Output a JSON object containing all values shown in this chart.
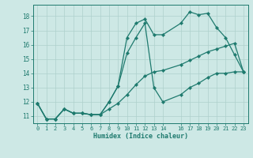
{
  "xlabel": "Humidex (Indice chaleur)",
  "background_color": "#cde8e5",
  "grid_color": "#aed0cc",
  "line_color": "#1e7a6e",
  "xlim": [
    -0.5,
    23.5
  ],
  "ylim": [
    10.5,
    18.8
  ],
  "yticks": [
    11,
    12,
    13,
    14,
    15,
    16,
    17,
    18
  ],
  "xticks": [
    0,
    1,
    2,
    3,
    4,
    5,
    6,
    7,
    8,
    9,
    10,
    11,
    12,
    13,
    14,
    16,
    17,
    18,
    19,
    20,
    21,
    22,
    23
  ],
  "series1_x": [
    0,
    1,
    2,
    3,
    4,
    5,
    6,
    7,
    8,
    9,
    10,
    11,
    12,
    13,
    14,
    16,
    17,
    18,
    19,
    20,
    21,
    22,
    23
  ],
  "series1_y": [
    11.9,
    10.8,
    10.8,
    11.5,
    11.2,
    11.2,
    11.1,
    11.1,
    12.0,
    13.1,
    16.5,
    17.5,
    17.8,
    16.7,
    16.7,
    17.5,
    18.3,
    18.1,
    18.2,
    17.2,
    16.5,
    15.3,
    14.1
  ],
  "series2_x": [
    0,
    1,
    2,
    3,
    4,
    5,
    6,
    7,
    8,
    9,
    10,
    11,
    12,
    13,
    14,
    16,
    17,
    18,
    19,
    20,
    21,
    22,
    23
  ],
  "series2_y": [
    11.9,
    10.8,
    10.8,
    11.5,
    11.2,
    11.2,
    11.1,
    11.1,
    11.5,
    11.9,
    12.5,
    13.2,
    13.8,
    14.1,
    14.2,
    14.6,
    14.9,
    15.2,
    15.5,
    15.7,
    15.9,
    16.1,
    14.1
  ],
  "series3_x": [
    0,
    1,
    2,
    3,
    4,
    5,
    6,
    7,
    8,
    9,
    10,
    11,
    12,
    13,
    14,
    16,
    17,
    18,
    19,
    20,
    21,
    22,
    23
  ],
  "series3_y": [
    11.9,
    10.8,
    10.8,
    11.5,
    11.2,
    11.2,
    11.1,
    11.1,
    12.0,
    13.1,
    15.4,
    16.5,
    17.5,
    13.0,
    12.0,
    12.5,
    13.0,
    13.3,
    13.7,
    14.0,
    14.0,
    14.1,
    14.1
  ]
}
